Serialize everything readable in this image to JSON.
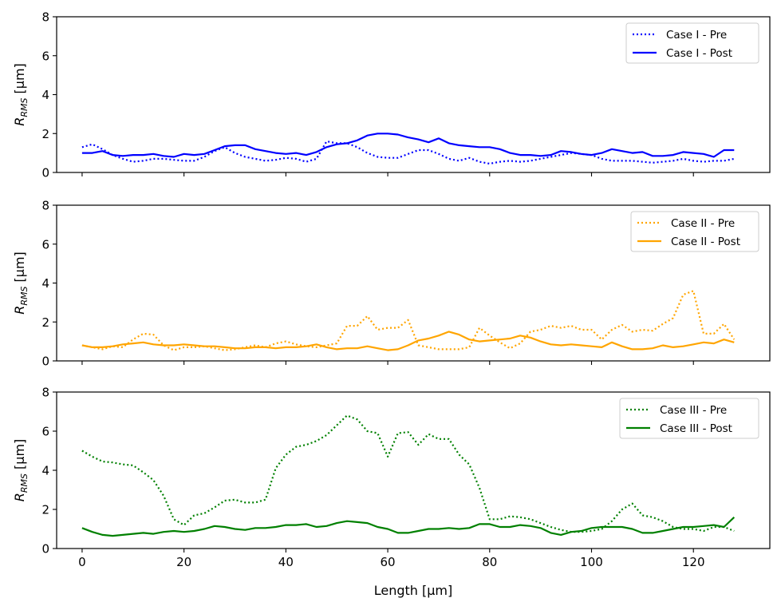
{
  "chart_data": [
    {
      "type": "line",
      "ylabel": {
        "main": "R",
        "sub": "RMS",
        "unit": " [μm]"
      },
      "ylim": [
        0,
        8
      ],
      "yticks": [
        0,
        2,
        4,
        6,
        8
      ],
      "xlim": [
        -5,
        135
      ],
      "legend_position": "top-right",
      "series": [
        {
          "name": "Case I - Pre",
          "color": "#0000ff",
          "style": "dotted",
          "x": [
            0,
            2,
            4,
            6,
            8,
            10,
            12,
            14,
            16,
            18,
            20,
            22,
            24,
            26,
            28,
            30,
            32,
            34,
            36,
            38,
            40,
            42,
            44,
            46,
            48,
            50,
            52,
            54,
            56,
            58,
            60,
            62,
            64,
            66,
            68,
            70,
            72,
            74,
            76,
            78,
            80,
            82,
            84,
            86,
            88,
            90,
            92,
            94,
            96,
            98,
            100,
            102,
            104,
            106,
            108,
            110,
            112,
            114,
            116,
            118,
            120,
            122,
            124,
            126,
            128
          ],
          "values": [
            1.3,
            1.45,
            1.2,
            0.9,
            0.7,
            0.55,
            0.6,
            0.7,
            0.7,
            0.65,
            0.6,
            0.6,
            0.8,
            1.1,
            1.3,
            1.0,
            0.8,
            0.7,
            0.6,
            0.65,
            0.75,
            0.7,
            0.55,
            0.7,
            1.6,
            1.5,
            1.5,
            1.3,
            1.0,
            0.8,
            0.75,
            0.75,
            0.95,
            1.15,
            1.15,
            0.95,
            0.7,
            0.6,
            0.75,
            0.55,
            0.45,
            0.55,
            0.6,
            0.55,
            0.6,
            0.7,
            0.8,
            0.9,
            1.0,
            0.95,
            0.9,
            0.7,
            0.6,
            0.6,
            0.6,
            0.55,
            0.5,
            0.55,
            0.6,
            0.7,
            0.6,
            0.55,
            0.6,
            0.6,
            0.7
          ]
        },
        {
          "name": "Case I - Post",
          "color": "#0000ff",
          "style": "solid",
          "x": [
            0,
            2,
            4,
            6,
            8,
            10,
            12,
            14,
            16,
            18,
            20,
            22,
            24,
            26,
            28,
            30,
            32,
            34,
            36,
            38,
            40,
            42,
            44,
            46,
            48,
            50,
            52,
            54,
            56,
            58,
            60,
            62,
            64,
            66,
            68,
            70,
            72,
            74,
            76,
            78,
            80,
            82,
            84,
            86,
            88,
            90,
            92,
            94,
            96,
            98,
            100,
            102,
            104,
            106,
            108,
            110,
            112,
            114,
            116,
            118,
            120,
            122,
            124,
            126,
            128
          ],
          "values": [
            1.0,
            1.0,
            1.1,
            0.9,
            0.85,
            0.9,
            0.9,
            0.95,
            0.85,
            0.8,
            0.95,
            0.9,
            0.95,
            1.15,
            1.35,
            1.4,
            1.4,
            1.2,
            1.1,
            1.0,
            0.95,
            1.0,
            0.9,
            1.05,
            1.3,
            1.45,
            1.5,
            1.65,
            1.9,
            2.0,
            2.0,
            1.95,
            1.8,
            1.7,
            1.55,
            1.75,
            1.5,
            1.4,
            1.35,
            1.3,
            1.3,
            1.2,
            1.0,
            0.9,
            0.9,
            0.85,
            0.9,
            1.1,
            1.05,
            0.95,
            0.9,
            1.0,
            1.2,
            1.1,
            1.0,
            1.05,
            0.85,
            0.85,
            0.9,
            1.05,
            1.0,
            0.95,
            0.8,
            1.15,
            1.15
          ]
        }
      ]
    },
    {
      "type": "line",
      "ylabel": {
        "main": "R",
        "sub": "RMS",
        "unit": " [μm]"
      },
      "ylim": [
        0,
        8
      ],
      "yticks": [
        0,
        2,
        4,
        6,
        8
      ],
      "xlim": [
        -5,
        135
      ],
      "legend_position": "top-right",
      "series": [
        {
          "name": "Case II - Pre",
          "color": "#ffa500",
          "style": "dotted",
          "x": [
            0,
            2,
            4,
            6,
            8,
            10,
            12,
            14,
            16,
            18,
            20,
            22,
            24,
            26,
            28,
            30,
            32,
            34,
            36,
            38,
            40,
            42,
            44,
            46,
            48,
            50,
            52,
            54,
            56,
            58,
            60,
            62,
            64,
            66,
            68,
            70,
            72,
            74,
            76,
            78,
            80,
            82,
            84,
            86,
            88,
            90,
            92,
            94,
            96,
            98,
            100,
            102,
            104,
            106,
            108,
            110,
            112,
            114,
            116,
            118,
            120,
            122,
            124,
            126,
            128
          ],
          "values": [
            0.8,
            0.7,
            0.6,
            0.75,
            0.7,
            1.1,
            1.4,
            1.35,
            0.8,
            0.55,
            0.7,
            0.7,
            0.75,
            0.65,
            0.55,
            0.6,
            0.7,
            0.8,
            0.7,
            0.9,
            1.0,
            0.85,
            0.75,
            0.7,
            0.8,
            0.9,
            1.8,
            1.8,
            2.3,
            1.6,
            1.7,
            1.7,
            2.1,
            0.8,
            0.7,
            0.6,
            0.6,
            0.6,
            0.7,
            1.7,
            1.3,
            0.95,
            0.65,
            0.9,
            1.5,
            1.6,
            1.8,
            1.7,
            1.8,
            1.6,
            1.6,
            1.1,
            1.6,
            1.85,
            1.5,
            1.6,
            1.55,
            1.9,
            2.2,
            3.4,
            3.6,
            1.4,
            1.4,
            1.9,
            1.1
          ]
        },
        {
          "name": "Case II - Post",
          "color": "#ffa500",
          "style": "solid",
          "x": [
            0,
            2,
            4,
            6,
            8,
            10,
            12,
            14,
            16,
            18,
            20,
            22,
            24,
            26,
            28,
            30,
            32,
            34,
            36,
            38,
            40,
            42,
            44,
            46,
            48,
            50,
            52,
            54,
            56,
            58,
            60,
            62,
            64,
            66,
            68,
            70,
            72,
            74,
            76,
            78,
            80,
            82,
            84,
            86,
            88,
            90,
            92,
            94,
            96,
            98,
            100,
            102,
            104,
            106,
            108,
            110,
            112,
            114,
            116,
            118,
            120,
            122,
            124,
            126,
            128
          ],
          "values": [
            0.8,
            0.7,
            0.7,
            0.75,
            0.85,
            0.9,
            0.95,
            0.85,
            0.8,
            0.8,
            0.85,
            0.8,
            0.75,
            0.75,
            0.7,
            0.65,
            0.65,
            0.7,
            0.7,
            0.65,
            0.7,
            0.7,
            0.75,
            0.85,
            0.7,
            0.6,
            0.65,
            0.65,
            0.75,
            0.65,
            0.55,
            0.6,
            0.8,
            1.05,
            1.15,
            1.3,
            1.5,
            1.35,
            1.1,
            1.0,
            1.05,
            1.1,
            1.15,
            1.3,
            1.2,
            1.0,
            0.85,
            0.8,
            0.85,
            0.8,
            0.75,
            0.7,
            0.95,
            0.75,
            0.6,
            0.6,
            0.65,
            0.8,
            0.7,
            0.75,
            0.85,
            0.95,
            0.9,
            1.1,
            0.95
          ]
        }
      ]
    },
    {
      "type": "line",
      "xlabel": "Length [μm]",
      "ylabel": {
        "main": "R",
        "sub": "RMS",
        "unit": " [μm]"
      },
      "ylim": [
        0,
        8
      ],
      "yticks": [
        0,
        2,
        4,
        6,
        8
      ],
      "xlim": [
        -5,
        135
      ],
      "xticks": [
        0,
        20,
        40,
        60,
        80,
        100,
        120
      ],
      "legend_position": "top-right",
      "series": [
        {
          "name": "Case III - Pre",
          "color": "#008000",
          "style": "dotted",
          "x": [
            0,
            2,
            4,
            6,
            8,
            10,
            12,
            14,
            16,
            18,
            20,
            22,
            24,
            26,
            28,
            30,
            32,
            34,
            36,
            38,
            40,
            42,
            44,
            46,
            48,
            50,
            52,
            54,
            56,
            58,
            60,
            62,
            64,
            66,
            68,
            70,
            72,
            74,
            76,
            78,
            80,
            82,
            84,
            86,
            88,
            90,
            92,
            94,
            96,
            98,
            100,
            102,
            104,
            106,
            108,
            110,
            112,
            114,
            116,
            118,
            120,
            122,
            124,
            126,
            128
          ],
          "values": [
            5.0,
            4.7,
            4.45,
            4.4,
            4.3,
            4.25,
            3.9,
            3.5,
            2.7,
            1.5,
            1.2,
            1.7,
            1.8,
            2.1,
            2.45,
            2.5,
            2.35,
            2.35,
            2.5,
            4.1,
            4.8,
            5.2,
            5.3,
            5.5,
            5.8,
            6.3,
            6.8,
            6.6,
            6.0,
            5.9,
            4.7,
            5.9,
            5.95,
            5.3,
            5.85,
            5.6,
            5.6,
            4.8,
            4.3,
            3.1,
            1.5,
            1.5,
            1.65,
            1.6,
            1.5,
            1.3,
            1.1,
            0.95,
            0.85,
            0.85,
            0.9,
            1.0,
            1.4,
            2.0,
            2.3,
            1.7,
            1.6,
            1.4,
            1.1,
            1.0,
            1.0,
            0.9,
            1.1,
            1.1,
            0.9
          ]
        },
        {
          "name": "Case III - Post",
          "color": "#008000",
          "style": "solid",
          "x": [
            0,
            2,
            4,
            6,
            8,
            10,
            12,
            14,
            16,
            18,
            20,
            22,
            24,
            26,
            28,
            30,
            32,
            34,
            36,
            38,
            40,
            42,
            44,
            46,
            48,
            50,
            52,
            54,
            56,
            58,
            60,
            62,
            64,
            66,
            68,
            70,
            72,
            74,
            76,
            78,
            80,
            82,
            84,
            86,
            88,
            90,
            92,
            94,
            96,
            98,
            100,
            102,
            104,
            106,
            108,
            110,
            112,
            114,
            116,
            118,
            120,
            122,
            124,
            126,
            128
          ],
          "values": [
            1.05,
            0.85,
            0.7,
            0.65,
            0.7,
            0.75,
            0.8,
            0.75,
            0.85,
            0.9,
            0.85,
            0.9,
            1.0,
            1.15,
            1.1,
            1.0,
            0.95,
            1.05,
            1.05,
            1.1,
            1.2,
            1.2,
            1.25,
            1.1,
            1.15,
            1.3,
            1.4,
            1.35,
            1.3,
            1.1,
            1.0,
            0.8,
            0.8,
            0.9,
            1.0,
            1.0,
            1.05,
            1.0,
            1.05,
            1.25,
            1.25,
            1.1,
            1.1,
            1.2,
            1.15,
            1.05,
            0.8,
            0.7,
            0.85,
            0.9,
            1.05,
            1.1,
            1.1,
            1.1,
            1.0,
            0.8,
            0.8,
            0.9,
            1.0,
            1.1,
            1.1,
            1.15,
            1.2,
            1.1,
            1.6
          ]
        }
      ]
    }
  ]
}
